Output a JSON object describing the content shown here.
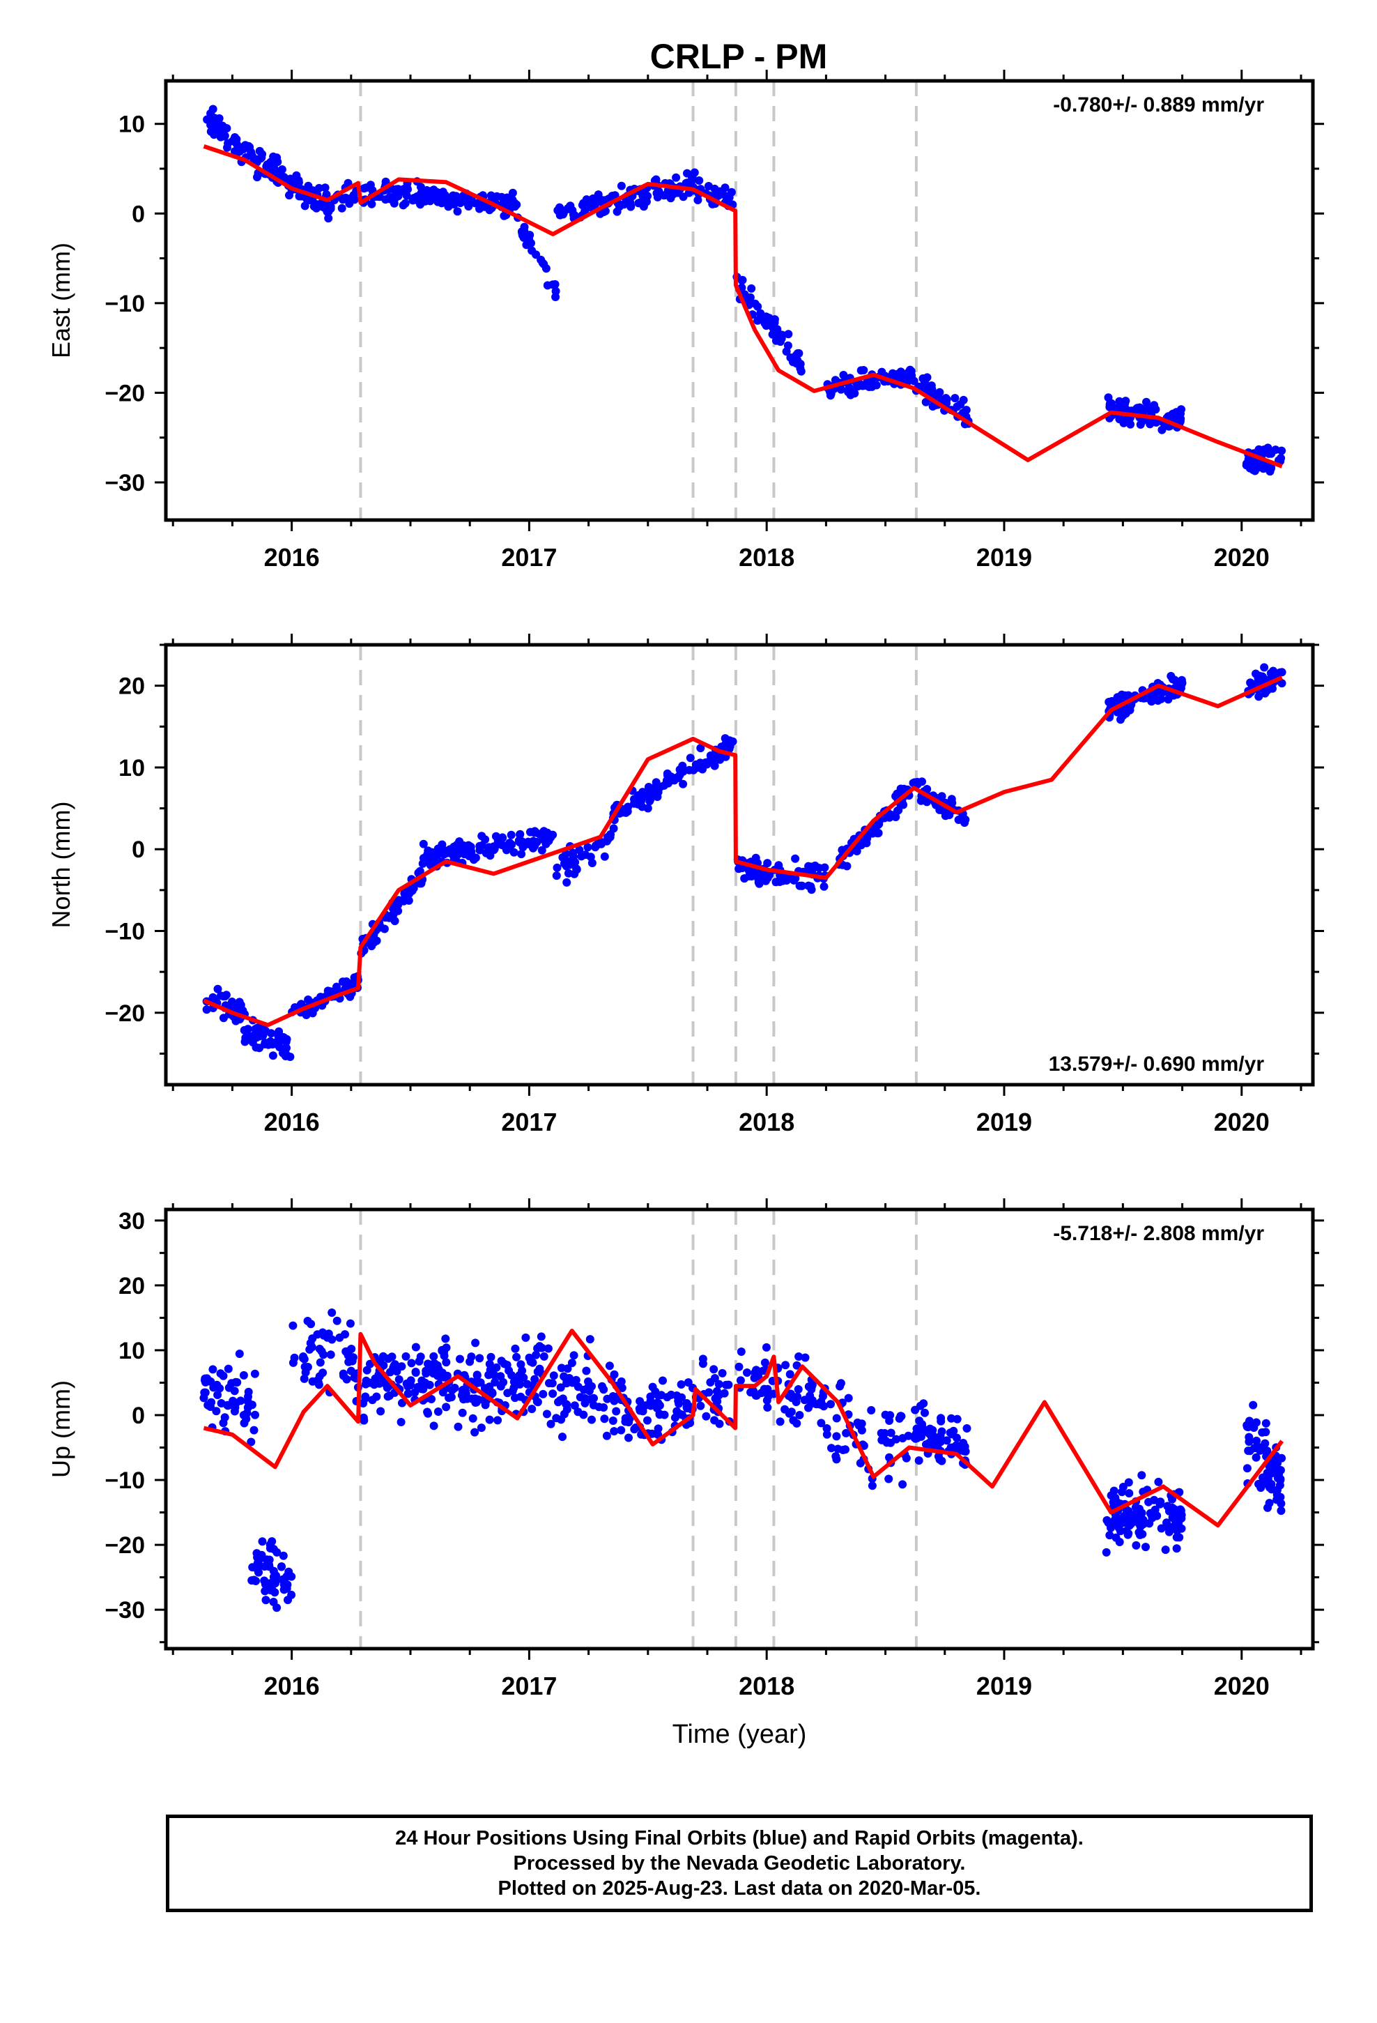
{
  "chart_data": [
    {
      "type": "scatter",
      "title": "CRLP - PM",
      "ylabel": "East (mm)",
      "xlabel": "",
      "xlim": [
        2015.47,
        2020.3
      ],
      "ylim": [
        -34.2,
        14.8
      ],
      "xticks": [
        "2016",
        "2017",
        "2018",
        "2019",
        "2020"
      ],
      "yticks": [
        "10",
        "0",
        "−10",
        "−20",
        "−30"
      ],
      "ytick_values": [
        10,
        0,
        -10,
        -20,
        -30
      ],
      "rate_text": "-0.780+/- 0.889 mm/yr",
      "rate_position": "top-right",
      "grid": false,
      "vlines": [
        2016.29,
        2017.69,
        2017.87,
        2018.03,
        2018.63
      ],
      "colors": {
        "points": "#0000ff",
        "model": "#ff0000",
        "vlines": "#c8c8c8"
      },
      "model": {
        "name": "model",
        "x": [
          2015.63,
          2015.8,
          2016.0,
          2016.15,
          2016.28,
          2016.29,
          2016.45,
          2016.65,
          2016.85,
          2017.1,
          2017.3,
          2017.5,
          2017.69,
          2017.8,
          2017.868,
          2017.87,
          2017.95,
          2018.05,
          2018.2,
          2018.45,
          2018.62,
          2018.8,
          2019.1,
          2019.45,
          2019.65,
          2019.9,
          2020.17
        ],
        "y": [
          7.5,
          6.0,
          2.8,
          1.5,
          3.4,
          1.2,
          3.8,
          3.5,
          1.0,
          -2.3,
          0.6,
          3.3,
          2.7,
          1.2,
          0.3,
          -8.0,
          -13.0,
          -17.5,
          -19.8,
          -18.0,
          -19.5,
          -22.5,
          -27.5,
          -22.2,
          -22.8,
          -25.5,
          -28.2
        ]
      },
      "series": [
        {
          "segments": [
            {
              "x0": 2015.63,
              "x1": 2015.75,
              "y0": 11.0,
              "y1": 8.0,
              "n": 30,
              "spread": 1.4
            },
            {
              "x0": 2015.75,
              "x1": 2016.15,
              "y0": 7.5,
              "y1": 1.0,
              "n": 110,
              "spread": 1.5
            },
            {
              "x0": 2016.15,
              "x1": 2016.28,
              "y0": 1.0,
              "y1": 3.0,
              "n": 20,
              "spread": 1.5
            },
            {
              "x0": 2016.3,
              "x1": 2016.95,
              "y0": 2.5,
              "y1": 1.0,
              "n": 140,
              "spread": 1.2
            },
            {
              "x0": 2016.95,
              "x1": 2017.12,
              "y0": -1.5,
              "y1": -8.0,
              "n": 25,
              "spread": 1.3
            },
            {
              "x0": 2017.12,
              "x1": 2017.7,
              "y0": 0.0,
              "y1": 3.5,
              "n": 120,
              "spread": 1.3
            },
            {
              "x0": 2017.7,
              "x1": 2017.86,
              "y0": 2.5,
              "y1": 1.5,
              "n": 30,
              "spread": 1.2
            },
            {
              "x0": 2017.87,
              "x1": 2018.15,
              "y0": -8.0,
              "y1": -17.0,
              "n": 60,
              "spread": 1.4
            },
            {
              "x0": 2018.25,
              "x1": 2018.62,
              "y0": -19.5,
              "y1": -18.0,
              "n": 80,
              "spread": 1.1
            },
            {
              "x0": 2018.62,
              "x1": 2018.85,
              "y0": -19.0,
              "y1": -22.5,
              "n": 55,
              "spread": 1.4
            },
            {
              "x0": 2019.43,
              "x1": 2019.75,
              "y0": -22.0,
              "y1": -23.0,
              "n": 90,
              "spread": 1.2
            },
            {
              "x0": 2020.02,
              "x1": 2020.17,
              "y0": -27.5,
              "y1": -27.5,
              "n": 50,
              "spread": 1.3
            }
          ]
        }
      ]
    },
    {
      "type": "scatter",
      "title": "",
      "ylabel": "North (mm)",
      "xlabel": "",
      "xlim": [
        2015.47,
        2020.3
      ],
      "ylim": [
        -28.8,
        25.0
      ],
      "xticks": [
        "2016",
        "2017",
        "2018",
        "2019",
        "2020"
      ],
      "yticks": [
        "20",
        "10",
        "0",
        "−10",
        "−20"
      ],
      "ytick_values": [
        20,
        10,
        0,
        -10,
        -20
      ],
      "rate_text": "13.579+/- 0.690 mm/yr",
      "rate_position": "bottom-right",
      "grid": false,
      "vlines": [
        2016.29,
        2017.69,
        2017.87,
        2018.03,
        2018.63
      ],
      "colors": {
        "points": "#0000ff",
        "model": "#ff0000",
        "vlines": "#c8c8c8"
      },
      "model": {
        "name": "model",
        "x": [
          2015.63,
          2015.75,
          2015.9,
          2016.05,
          2016.2,
          2016.28,
          2016.29,
          2016.45,
          2016.65,
          2016.85,
          2017.1,
          2017.3,
          2017.5,
          2017.69,
          2017.8,
          2017.868,
          2017.87,
          2018.0,
          2018.25,
          2018.45,
          2018.62,
          2018.8,
          2019.0,
          2019.2,
          2019.45,
          2019.65,
          2019.9,
          2020.17
        ],
        "y": [
          -18.5,
          -20.0,
          -21.5,
          -19.5,
          -17.8,
          -17.0,
          -12.0,
          -5.0,
          -1.5,
          -3.0,
          -0.5,
          1.5,
          11.0,
          13.5,
          12.0,
          11.5,
          -1.5,
          -2.5,
          -3.5,
          3.5,
          7.5,
          4.5,
          7.0,
          8.5,
          17.0,
          20.0,
          17.5,
          21.0
        ]
      },
      "series": [
        {
          "segments": [
            {
              "x0": 2015.63,
              "x1": 2015.8,
              "y0": -18.0,
              "y1": -20.0,
              "n": 40,
              "spread": 1.4
            },
            {
              "x0": 2015.8,
              "x1": 2016.0,
              "y0": -22.0,
              "y1": -24.0,
              "n": 50,
              "spread": 2.0
            },
            {
              "x0": 2016.0,
              "x1": 2016.28,
              "y0": -20.0,
              "y1": -16.5,
              "n": 55,
              "spread": 1.3
            },
            {
              "x0": 2016.29,
              "x1": 2016.55,
              "y0": -12.5,
              "y1": -3.0,
              "n": 60,
              "spread": 1.5
            },
            {
              "x0": 2016.55,
              "x1": 2017.1,
              "y0": -1.0,
              "y1": 1.5,
              "n": 120,
              "spread": 1.4
            },
            {
              "x0": 2017.1,
              "x1": 2017.35,
              "y0": -3.0,
              "y1": 1.0,
              "n": 40,
              "spread": 1.5
            },
            {
              "x0": 2017.35,
              "x1": 2017.86,
              "y0": 4.0,
              "y1": 13.0,
              "n": 110,
              "spread": 1.3
            },
            {
              "x0": 2017.87,
              "x1": 2018.25,
              "y0": -2.0,
              "y1": -3.5,
              "n": 80,
              "spread": 1.5
            },
            {
              "x0": 2018.3,
              "x1": 2018.62,
              "y0": -2.0,
              "y1": 8.0,
              "n": 70,
              "spread": 1.4
            },
            {
              "x0": 2018.62,
              "x1": 2018.85,
              "y0": 7.5,
              "y1": 3.5,
              "n": 50,
              "spread": 1.4
            },
            {
              "x0": 2019.43,
              "x1": 2019.75,
              "y0": 17.0,
              "y1": 20.0,
              "n": 90,
              "spread": 1.3
            },
            {
              "x0": 2020.02,
              "x1": 2020.17,
              "y0": 19.5,
              "y1": 21.0,
              "n": 50,
              "spread": 1.4
            }
          ]
        }
      ]
    },
    {
      "type": "scatter",
      "title": "",
      "ylabel": "Up (mm)",
      "xlabel": "Time (year)",
      "xlim": [
        2015.47,
        2020.3
      ],
      "ylim": [
        -36.0,
        31.7
      ],
      "xticks": [
        "2016",
        "2017",
        "2018",
        "2019",
        "2020"
      ],
      "yticks": [
        "30",
        "20",
        "10",
        "0",
        "−10",
        "−20",
        "−30"
      ],
      "ytick_values": [
        30,
        20,
        10,
        0,
        -10,
        -20,
        -30
      ],
      "rate_text": "-5.718+/- 2.808 mm/yr",
      "rate_position": "top-right",
      "grid": false,
      "vlines": [
        2016.29,
        2017.69,
        2017.87,
        2018.03,
        2018.63
      ],
      "colors": {
        "points": "#0000ff",
        "model": "#ff0000",
        "vlines": "#c8c8c8"
      },
      "model": {
        "name": "model",
        "x": [
          2015.63,
          2015.75,
          2015.93,
          2016.05,
          2016.15,
          2016.28,
          2016.29,
          2016.35,
          2016.5,
          2016.7,
          2016.95,
          2017.18,
          2017.35,
          2017.52,
          2017.69,
          2017.7,
          2017.868,
          2017.87,
          2017.95,
          2018.0,
          2018.03,
          2018.05,
          2018.15,
          2018.3,
          2018.45,
          2018.6,
          2018.8,
          2018.95,
          2019.17,
          2019.45,
          2019.67,
          2019.9,
          2020.17
        ],
        "y": [
          -2.0,
          -3.0,
          -8.0,
          0.5,
          4.5,
          -1.0,
          12.5,
          8.0,
          1.5,
          6.0,
          -0.5,
          13.0,
          5.0,
          -4.5,
          0.0,
          4.0,
          -2.0,
          4.5,
          4.5,
          6.0,
          9.0,
          2.0,
          7.5,
          2.0,
          -9.5,
          -5.0,
          -6.0,
          -11.0,
          2.0,
          -15.0,
          -11.0,
          -17.0,
          -4.0
        ]
      },
      "series": [
        {
          "segments": [
            {
              "x0": 2015.63,
              "x1": 2015.85,
              "y0": 3.0,
              "y1": 2.0,
              "n": 55,
              "spread": 5.0
            },
            {
              "x0": 2015.83,
              "x1": 2016.0,
              "y0": -22.0,
              "y1": -26.0,
              "n": 55,
              "spread": 4.5
            },
            {
              "x0": 2016.0,
              "x1": 2016.28,
              "y0": 10.0,
              "y1": 8.0,
              "n": 55,
              "spread": 7.0
            },
            {
              "x0": 2016.3,
              "x1": 2017.0,
              "y0": 5.0,
              "y1": 5.0,
              "n": 200,
              "spread": 6.0
            },
            {
              "x0": 2017.0,
              "x1": 2017.4,
              "y0": 6.0,
              "y1": 2.0,
              "n": 90,
              "spread": 6.0
            },
            {
              "x0": 2017.4,
              "x1": 2017.86,
              "y0": 0.0,
              "y1": 3.0,
              "n": 100,
              "spread": 4.5
            },
            {
              "x0": 2017.87,
              "x1": 2018.25,
              "y0": 6.0,
              "y1": 3.0,
              "n": 70,
              "spread": 5.0
            },
            {
              "x0": 2018.25,
              "x1": 2018.62,
              "y0": 0.0,
              "y1": -6.0,
              "n": 55,
              "spread": 8.0
            },
            {
              "x0": 2018.62,
              "x1": 2018.85,
              "y0": -2.0,
              "y1": -6.0,
              "n": 75,
              "spread": 4.0
            },
            {
              "x0": 2019.43,
              "x1": 2019.75,
              "y0": -16.0,
              "y1": -15.0,
              "n": 120,
              "spread": 5.0
            },
            {
              "x0": 2020.02,
              "x1": 2020.17,
              "y0": -5.0,
              "y1": -10.0,
              "n": 65,
              "spread": 6.0
            }
          ]
        }
      ]
    }
  ],
  "footer": {
    "line1": "24 Hour Positions Using Final Orbits (blue) and Rapid Orbits (magenta).",
    "line2": "Processed by the Nevada Geodetic Laboratory.",
    "line3": "Plotted on 2025-Aug-23. Last data on 2020-Mar-05."
  }
}
